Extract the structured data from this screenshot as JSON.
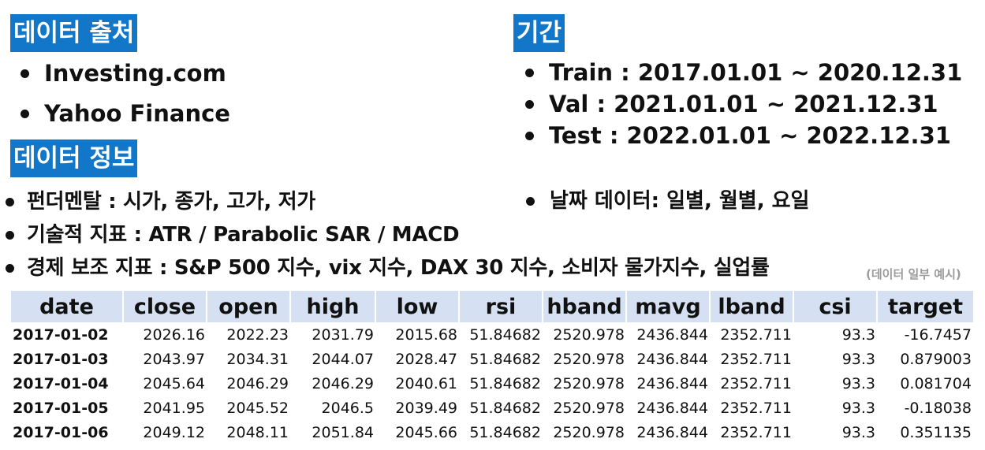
{
  "source": {
    "heading": "데이터 출처",
    "items": [
      "Investing.com",
      "Yahoo Finance"
    ]
  },
  "period": {
    "heading": "기간",
    "items": [
      "Train : 2017.01.01 ~ 2020.12.31",
      "Val :  2021.01.01 ~ 2021.12.31",
      "Test : 2022.01.01 ~ 2022.12.31"
    ]
  },
  "info": {
    "heading": "데이터 정보",
    "items": [
      "펀더멘탈 : 시가, 종가, 고가, 저가",
      "기술적 지표 : ATR / Parabolic SAR / MACD",
      "경제 보조 지표 :  S&P 500 지수, vix 지수, DAX 30 지수, 소비자 물가지수, 실업률"
    ],
    "date_item": "날짜 데이터: 일별, 월별, 요일"
  },
  "caption": "(데이터 일부 예시)",
  "table": {
    "headers": [
      "date",
      "close",
      "open",
      "high",
      "low",
      "rsi",
      "hband",
      "mavg",
      "lband",
      "csi",
      "target"
    ],
    "rows": [
      [
        "2017-01-02",
        "2026.16",
        "2022.23",
        "2031.79",
        "2015.68",
        "51.84682",
        "2520.978",
        "2436.844",
        "2352.711",
        "93.3",
        "-16.7457"
      ],
      [
        "2017-01-03",
        "2043.97",
        "2034.31",
        "2044.07",
        "2028.47",
        "51.84682",
        "2520.978",
        "2436.844",
        "2352.711",
        "93.3",
        "0.879003"
      ],
      [
        "2017-01-04",
        "2045.64",
        "2046.29",
        "2046.29",
        "2040.61",
        "51.84682",
        "2520.978",
        "2436.844",
        "2352.711",
        "93.3",
        "0.081704"
      ],
      [
        "2017-01-05",
        "2041.95",
        "2045.52",
        "2046.5",
        "2039.49",
        "51.84682",
        "2520.978",
        "2436.844",
        "2352.711",
        "93.3",
        "-0.18038"
      ],
      [
        "2017-01-06",
        "2049.12",
        "2048.11",
        "2051.84",
        "2045.66",
        "51.84682",
        "2520.978",
        "2436.844",
        "2352.711",
        "93.3",
        "0.351135"
      ]
    ]
  },
  "colors": {
    "heading_bg": "#1277c9",
    "table_header_bg": "#d5e1f2",
    "caption": "#9a9a9a"
  }
}
